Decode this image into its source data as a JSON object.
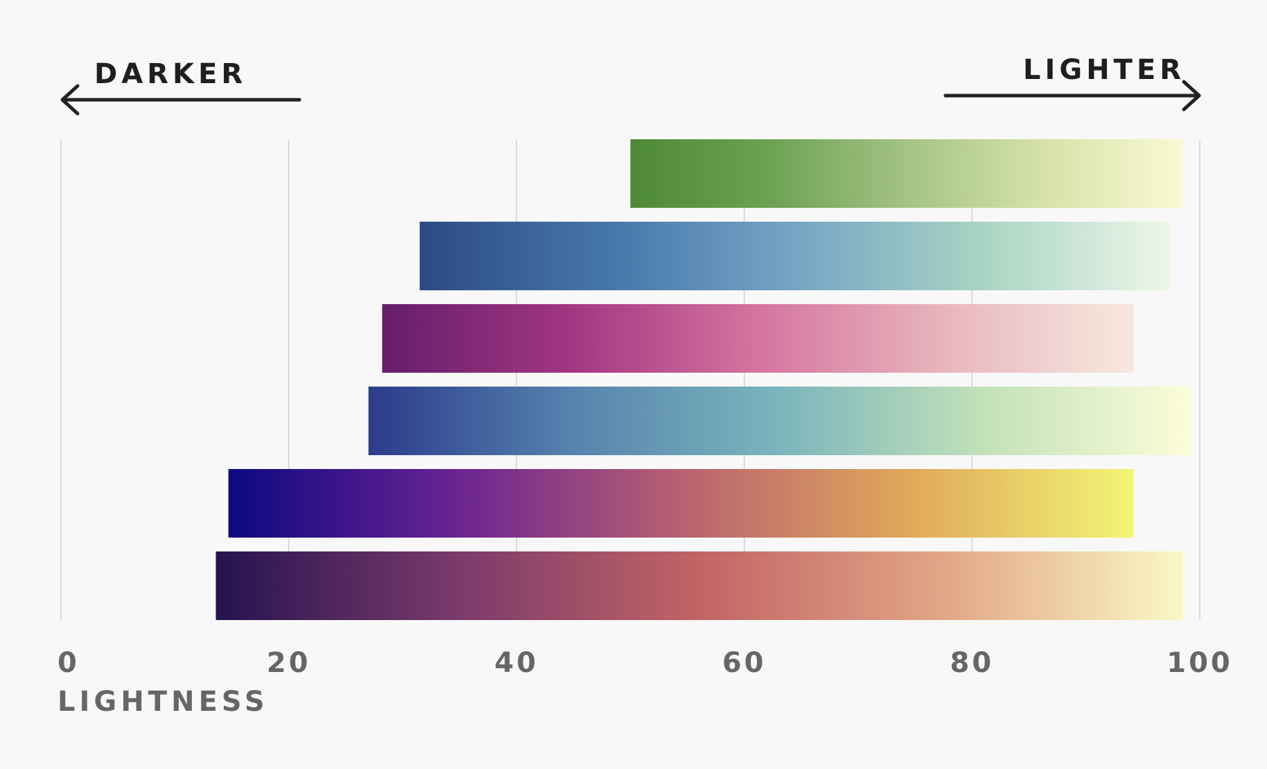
{
  "chart_data": {
    "type": "bar",
    "orientation": "horizontal",
    "xlabel": "LIGHTNESS",
    "xlim": [
      0,
      100
    ],
    "xticks": [
      "0",
      "20",
      "40",
      "60",
      "80",
      "100"
    ],
    "grid": "vertical",
    "annotations": {
      "left": "DARKER",
      "right": "LIGHTER"
    },
    "series": [
      {
        "start": 50.0,
        "end": 98.5,
        "colors": [
          "#4e8937",
          "#6ca152",
          "#a4c384",
          "#d6e2a9",
          "#faf9d3"
        ]
      },
      {
        "start": 31.5,
        "end": 97.5,
        "colors": [
          "#2d4a85",
          "#4676aa",
          "#76a5c5",
          "#a9d4c3",
          "#eef7e9"
        ]
      },
      {
        "start": 28.2,
        "end": 94.2,
        "colors": [
          "#651d6b",
          "#a23682",
          "#d5749f",
          "#e8b6bd",
          "#f7e9df"
        ]
      },
      {
        "start": 27.0,
        "end": 99.2,
        "colors": [
          "#2b3b8c",
          "#5683ae",
          "#7bb5bc",
          "#c3e1b9",
          "#fcfdd8"
        ]
      },
      {
        "start": 14.7,
        "end": 94.2,
        "colors": [
          "#0d0880",
          "#6a2392",
          "#b86171",
          "#e0a75a",
          "#f1f675"
        ]
      },
      {
        "start": 13.6,
        "end": 98.5,
        "colors": [
          "#26134f",
          "#7a3a6b",
          "#c26464",
          "#e1a587",
          "#faf8c6"
        ]
      }
    ]
  }
}
